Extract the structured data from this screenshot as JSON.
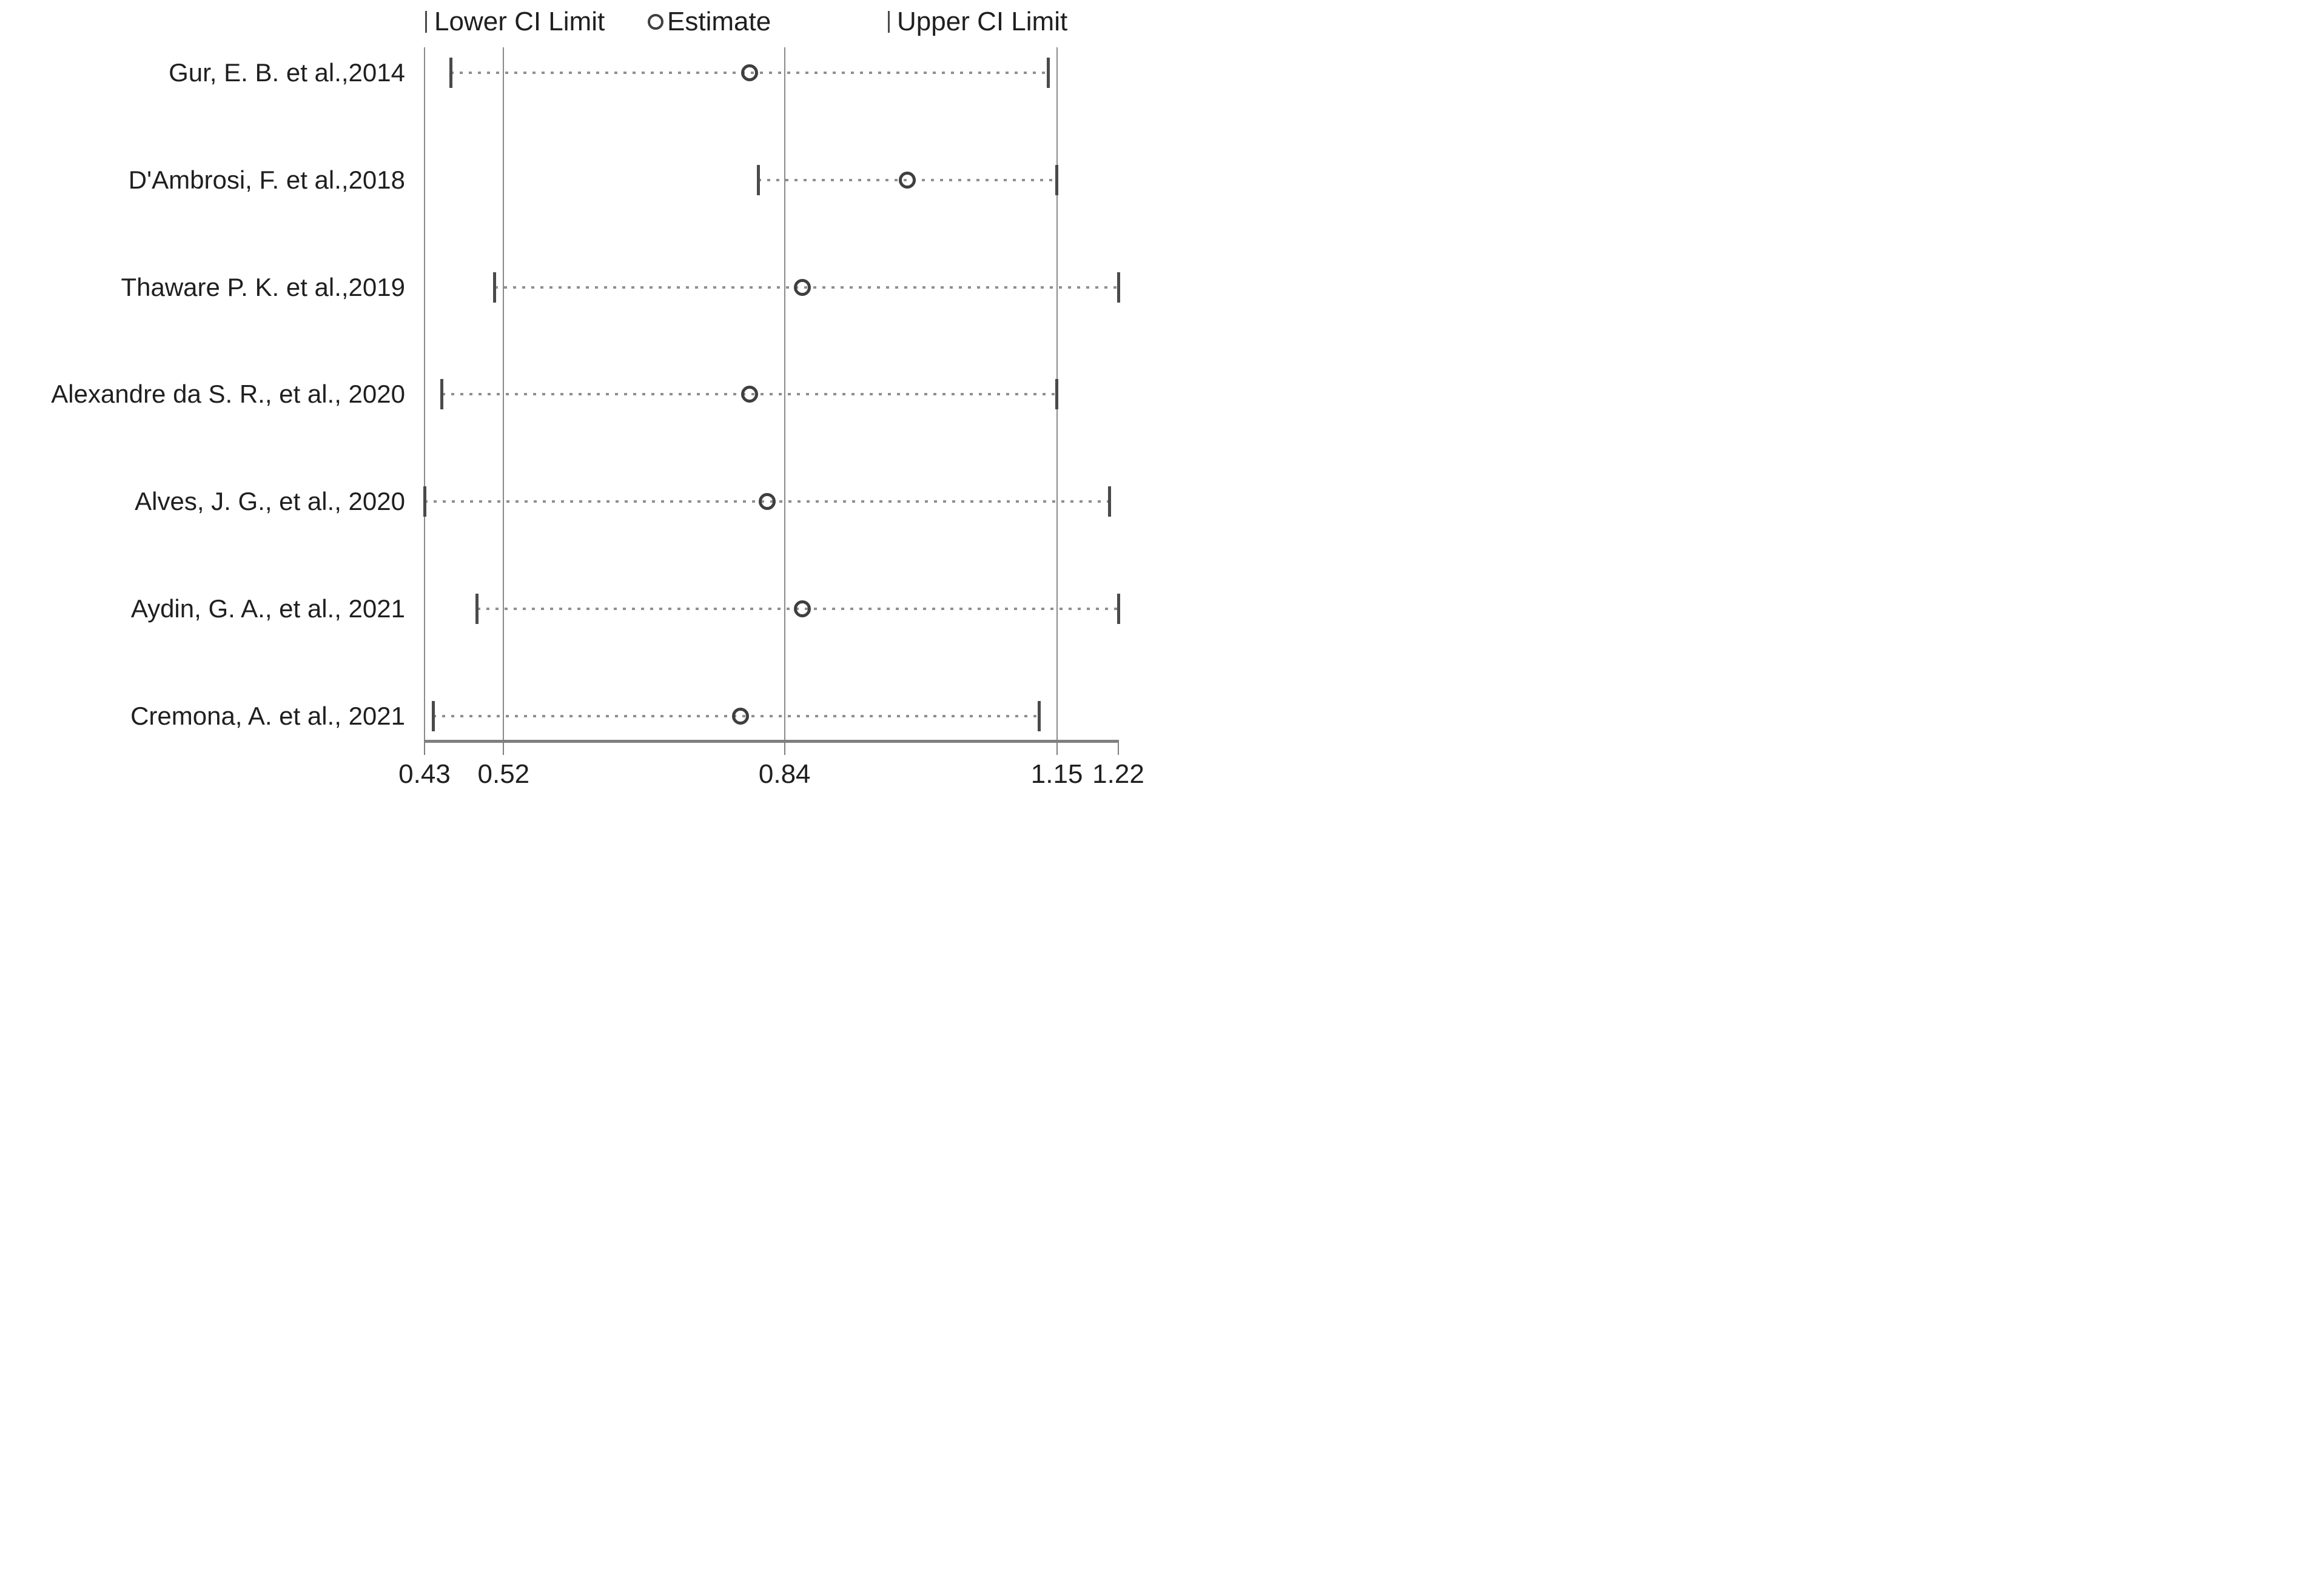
{
  "figure": {
    "kind": "forest-plot",
    "background": "#ffffff"
  },
  "colors": {
    "text": "#1f1f1f",
    "gridline": "#8a8a8a",
    "axis_line": "#7f7f7f",
    "ci_tick": "#4a4a4a",
    "ci_dots": "#8f8f8f",
    "estimate_circle": "#3f3f3f"
  },
  "legend": {
    "items": [
      {
        "marker": "tick-icon",
        "label": "Lower CI Limit"
      },
      {
        "marker": "circle-icon",
        "label": "Estimate"
      },
      {
        "marker": "tick-icon",
        "label": "Upper CI Limit"
      }
    ]
  },
  "chart_data": {
    "type": "scatter",
    "subtype": "forest-plot",
    "title": "",
    "xlabel": "",
    "ylabel": "",
    "xlim": [
      0.43,
      1.22
    ],
    "x_ticks": [
      "0.43",
      "0.52",
      "0.84",
      "1.15",
      "1.22"
    ],
    "gridlines_at": [
      0.43,
      0.52,
      0.84,
      1.15
    ],
    "grid": "vertical-only",
    "legend_position": "top",
    "series": [
      {
        "name": "Lower CI Limit",
        "marker": "vertical-tick"
      },
      {
        "name": "Estimate",
        "marker": "open-circle"
      },
      {
        "name": "Upper CI Limit",
        "marker": "vertical-tick"
      }
    ],
    "studies": [
      {
        "label": "Gur, E. B. et al.,2014",
        "lower": 0.46,
        "estimate": 0.8,
        "upper": 1.14
      },
      {
        "label": "D'Ambrosi, F. et al.,2018",
        "lower": 0.81,
        "estimate": 0.98,
        "upper": 1.15
      },
      {
        "label": "Thaware P. K. et al.,2019",
        "lower": 0.51,
        "estimate": 0.86,
        "upper": 1.22
      },
      {
        "label": "Alexandre da S. R., et al., 2020",
        "lower": 0.45,
        "estimate": 0.8,
        "upper": 1.15
      },
      {
        "label": "Alves, J. G., et al., 2020",
        "lower": 0.43,
        "estimate": 0.82,
        "upper": 1.21
      },
      {
        "label": "Aydin, G. A., et al., 2021",
        "lower": 0.49,
        "estimate": 0.86,
        "upper": 1.22
      },
      {
        "label": "Cremona, A. et al., 2021",
        "lower": 0.44,
        "estimate": 0.79,
        "upper": 1.13
      }
    ]
  }
}
